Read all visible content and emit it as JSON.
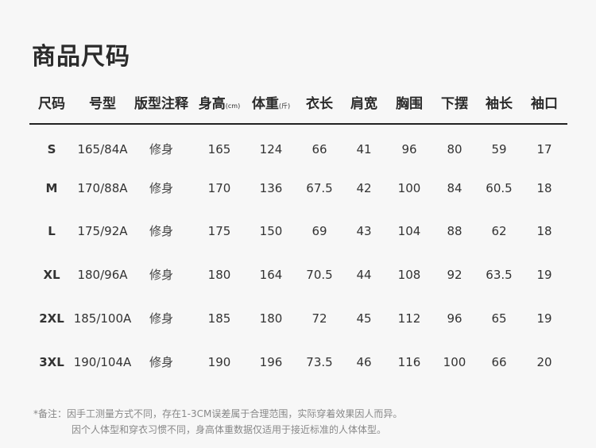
{
  "title": "商品尺码",
  "table": {
    "headers": [
      {
        "label": "尺码",
        "unit": ""
      },
      {
        "label": "号型",
        "unit": ""
      },
      {
        "label": "版型注释",
        "unit": ""
      },
      {
        "label": "身高",
        "unit": "(cm)"
      },
      {
        "label": "体重",
        "unit": "(斤)"
      },
      {
        "label": "衣长",
        "unit": ""
      },
      {
        "label": "肩宽",
        "unit": ""
      },
      {
        "label": "胸围",
        "unit": ""
      },
      {
        "label": "下摆",
        "unit": ""
      },
      {
        "label": "袖长",
        "unit": ""
      },
      {
        "label": "袖口",
        "unit": ""
      }
    ],
    "rows": [
      [
        "S",
        "165/84A",
        "修身",
        "165",
        "124",
        "66",
        "41",
        "96",
        "80",
        "59",
        "17"
      ],
      [
        "M",
        "170/88A",
        "修身",
        "170",
        "136",
        "67.5",
        "42",
        "100",
        "84",
        "60.5",
        "18"
      ],
      [
        "L",
        "175/92A",
        "修身",
        "175",
        "150",
        "69",
        "43",
        "104",
        "88",
        "62",
        "18"
      ],
      [
        "XL",
        "180/96A",
        "修身",
        "180",
        "164",
        "70.5",
        "44",
        "108",
        "92",
        "63.5",
        "19"
      ],
      [
        "2XL",
        "185/100A",
        "修身",
        "185",
        "180",
        "72",
        "45",
        "112",
        "96",
        "65",
        "19"
      ],
      [
        "3XL",
        "190/104A",
        "修身",
        "190",
        "196",
        "73.5",
        "46",
        "116",
        "100",
        "66",
        "20"
      ]
    ]
  },
  "notes": [
    "*备注：因手工测量方式不同，存在1-3CM误差属于合理范围，实际穿着效果因人而异。",
    "因个人体型和穿衣习惯不同，身高体重数据仅适用于接近标准的人体体型。"
  ]
}
